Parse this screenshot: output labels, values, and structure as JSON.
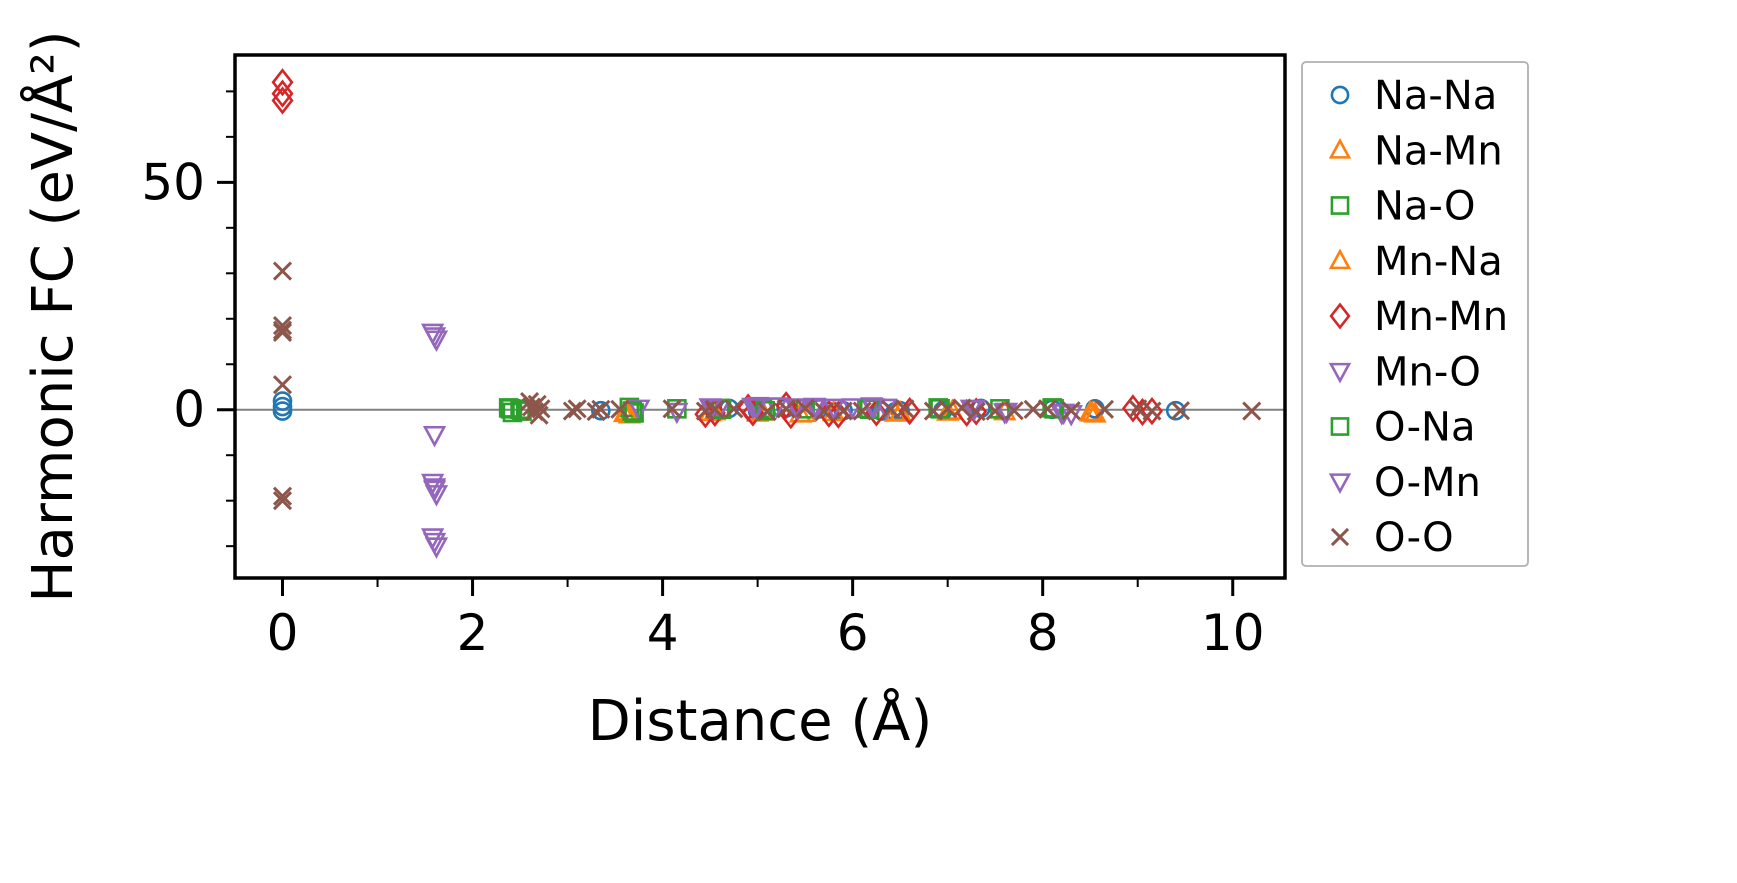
{
  "chart_data": {
    "type": "scatter",
    "title": "",
    "xlabel": "Distance (Å)",
    "ylabel": "Harmonic FC (eV/Å²)",
    "xlim": [
      -0.5,
      10.55
    ],
    "ylim": [
      -37,
      78
    ],
    "xticks": [
      0,
      2,
      4,
      6,
      8,
      10
    ],
    "xminorticks": [
      1,
      3,
      5,
      7,
      9
    ],
    "yticks": [
      0,
      50
    ],
    "yminorticks": [
      -30,
      -20,
      -10,
      10,
      20,
      30,
      40,
      60,
      70
    ],
    "hline": 0,
    "hline_color": "#808080",
    "grid": false,
    "legend_position": "right-outside",
    "legend_border_color": "#b0b0b0",
    "series": [
      {
        "name": "Na-Na",
        "marker": "circle",
        "color": "#1f77b4",
        "points": [
          [
            0,
            1.9
          ],
          [
            0,
            0.7
          ],
          [
            0,
            -0.3
          ],
          [
            3.35,
            -0.2
          ],
          [
            4.7,
            0.3
          ],
          [
            5.0,
            -0.3
          ],
          [
            5.3,
            0.4
          ],
          [
            5.65,
            0.2
          ],
          [
            5.9,
            -0.2
          ],
          [
            6.3,
            -0.3
          ],
          [
            6.45,
            -0.4
          ],
          [
            6.5,
            -0.2
          ],
          [
            6.95,
            -0.2
          ],
          [
            7.35,
            0.3
          ],
          [
            8.1,
            0.1
          ],
          [
            8.55,
            0.2
          ],
          [
            9.4,
            -0.2
          ]
        ]
      },
      {
        "name": "Na-Mn",
        "marker": "triangle-up",
        "color": "#ff7f0e",
        "points": [
          [
            3.6,
            -0.8
          ],
          [
            3.65,
            -1.1
          ],
          [
            4.5,
            -0.6
          ],
          [
            5.0,
            -0.7
          ],
          [
            5.45,
            -0.9
          ],
          [
            5.8,
            -0.6
          ],
          [
            6.45,
            -0.7
          ],
          [
            7.0,
            -0.5
          ],
          [
            7.6,
            -0.4
          ],
          [
            8.5,
            -0.6
          ],
          [
            8.55,
            -0.9
          ]
        ]
      },
      {
        "name": "Na-O",
        "marker": "square",
        "color": "#2ca02c",
        "points": [
          [
            2.38,
            0.4
          ],
          [
            2.42,
            -0.6
          ],
          [
            2.5,
            0.1
          ],
          [
            3.65,
            0.5
          ],
          [
            3.7,
            -0.7
          ],
          [
            4.15,
            0.2
          ],
          [
            4.6,
            0.3
          ],
          [
            5.05,
            0.3
          ],
          [
            5.5,
            0.2
          ],
          [
            6.15,
            0.3
          ],
          [
            6.9,
            0.4
          ],
          [
            7.55,
            0.2
          ],
          [
            8.1,
            0.4
          ]
        ]
      },
      {
        "name": "Mn-Na",
        "marker": "triangle-up",
        "color": "#ff7f0e",
        "points": [
          [
            3.62,
            -0.5
          ],
          [
            4.55,
            -0.4
          ],
          [
            5.05,
            -0.5
          ],
          [
            5.5,
            -0.8
          ],
          [
            6.5,
            -0.6
          ],
          [
            7.05,
            -0.3
          ],
          [
            8.52,
            -0.7
          ]
        ]
      },
      {
        "name": "Mn-Mn",
        "marker": "diamond",
        "color": "#d62728",
        "points": [
          [
            0,
            72
          ],
          [
            0,
            69.5
          ],
          [
            0,
            68
          ],
          [
            4.45,
            -1.0
          ],
          [
            4.55,
            -0.7
          ],
          [
            4.9,
            0.5
          ],
          [
            4.95,
            -0.6
          ],
          [
            5.3,
            1.0
          ],
          [
            5.35,
            -1.2
          ],
          [
            5.75,
            -0.9
          ],
          [
            5.85,
            -1.1
          ],
          [
            6.25,
            -0.6
          ],
          [
            6.6,
            -0.3
          ],
          [
            7.2,
            -0.7
          ],
          [
            7.3,
            -0.4
          ],
          [
            8.95,
            0.3
          ],
          [
            9.05,
            -0.5
          ],
          [
            9.15,
            -0.3
          ]
        ]
      },
      {
        "name": "Mn-O",
        "marker": "triangle-down",
        "color": "#9467bd",
        "points": [
          [
            1.58,
            17
          ],
          [
            1.62,
            15.5
          ],
          [
            1.6,
            -5.5
          ],
          [
            1.58,
            -16
          ],
          [
            1.6,
            -17.5
          ],
          [
            1.62,
            -18.5
          ],
          [
            1.58,
            -28
          ],
          [
            1.62,
            -30
          ],
          [
            3.75,
            0.3
          ],
          [
            4.15,
            -0.4
          ],
          [
            4.5,
            0.6
          ],
          [
            4.6,
            0.4
          ],
          [
            4.95,
            0.7
          ],
          [
            5.0,
            0.9
          ],
          [
            5.2,
            0.8
          ],
          [
            5.4,
            0.6
          ],
          [
            5.6,
            0.7
          ],
          [
            5.8,
            0.5
          ],
          [
            6.0,
            0.6
          ],
          [
            6.2,
            0.8
          ],
          [
            6.35,
            0.5
          ],
          [
            7.25,
            0.3
          ],
          [
            7.6,
            -0.5
          ],
          [
            8.2,
            -0.7
          ],
          [
            8.3,
            -0.9
          ]
        ]
      },
      {
        "name": "O-Na",
        "marker": "square",
        "color": "#2ca02c",
        "points": [
          [
            2.4,
            0.2
          ],
          [
            2.52,
            -0.3
          ],
          [
            3.68,
            -0.3
          ],
          [
            4.62,
            0.1
          ],
          [
            5.08,
            -0.2
          ],
          [
            6.18,
            0.1
          ],
          [
            6.92,
            0.2
          ],
          [
            8.12,
            0.2
          ]
        ]
      },
      {
        "name": "O-Mn",
        "marker": "triangle-down",
        "color": "#9467bd",
        "points": [
          [
            1.6,
            16.2
          ],
          [
            1.6,
            -17
          ],
          [
            1.6,
            -29
          ],
          [
            4.52,
            0.5
          ],
          [
            4.98,
            0.6
          ],
          [
            5.42,
            0.4
          ],
          [
            5.62,
            0.5
          ],
          [
            6.22,
            0.6
          ],
          [
            7.28,
            0.2
          ],
          [
            7.62,
            -0.4
          ],
          [
            8.22,
            -0.6
          ]
        ]
      },
      {
        "name": "O-O",
        "marker": "x",
        "color": "#8c564b",
        "points": [
          [
            0,
            30.5
          ],
          [
            0,
            18.5
          ],
          [
            0,
            17.5
          ],
          [
            0,
            17
          ],
          [
            0,
            5.5
          ],
          [
            0,
            -19
          ],
          [
            0,
            -20
          ],
          [
            2.6,
            1.8
          ],
          [
            2.62,
            0.6
          ],
          [
            2.65,
            -0.4
          ],
          [
            2.68,
            1.2
          ],
          [
            2.7,
            -1.2
          ],
          [
            2.72,
            0.2
          ],
          [
            3.05,
            -0.3
          ],
          [
            3.1,
            0.2
          ],
          [
            3.3,
            -0.4
          ],
          [
            3.35,
            0.1
          ],
          [
            3.55,
            0.1
          ],
          [
            4.1,
            0.2
          ],
          [
            4.45,
            -0.3
          ],
          [
            4.55,
            0.1
          ],
          [
            4.75,
            0.2
          ],
          [
            5.1,
            -0.4
          ],
          [
            5.3,
            0.2
          ],
          [
            5.5,
            0.3
          ],
          [
            5.7,
            -0.4
          ],
          [
            5.9,
            -0.3
          ],
          [
            6.1,
            -0.3
          ],
          [
            6.4,
            0.1
          ],
          [
            6.55,
            0.2
          ],
          [
            6.85,
            -0.3
          ],
          [
            7.0,
            0.2
          ],
          [
            7.15,
            0.4
          ],
          [
            7.3,
            -0.4
          ],
          [
            7.5,
            -0.3
          ],
          [
            7.7,
            -0.2
          ],
          [
            7.9,
            0.1
          ],
          [
            8.05,
            0.2
          ],
          [
            8.3,
            -0.2
          ],
          [
            8.65,
            0.1
          ],
          [
            9.0,
            0.2
          ],
          [
            9.15,
            -0.3
          ],
          [
            9.45,
            -0.2
          ],
          [
            10.2,
            -0.3
          ]
        ]
      }
    ]
  }
}
